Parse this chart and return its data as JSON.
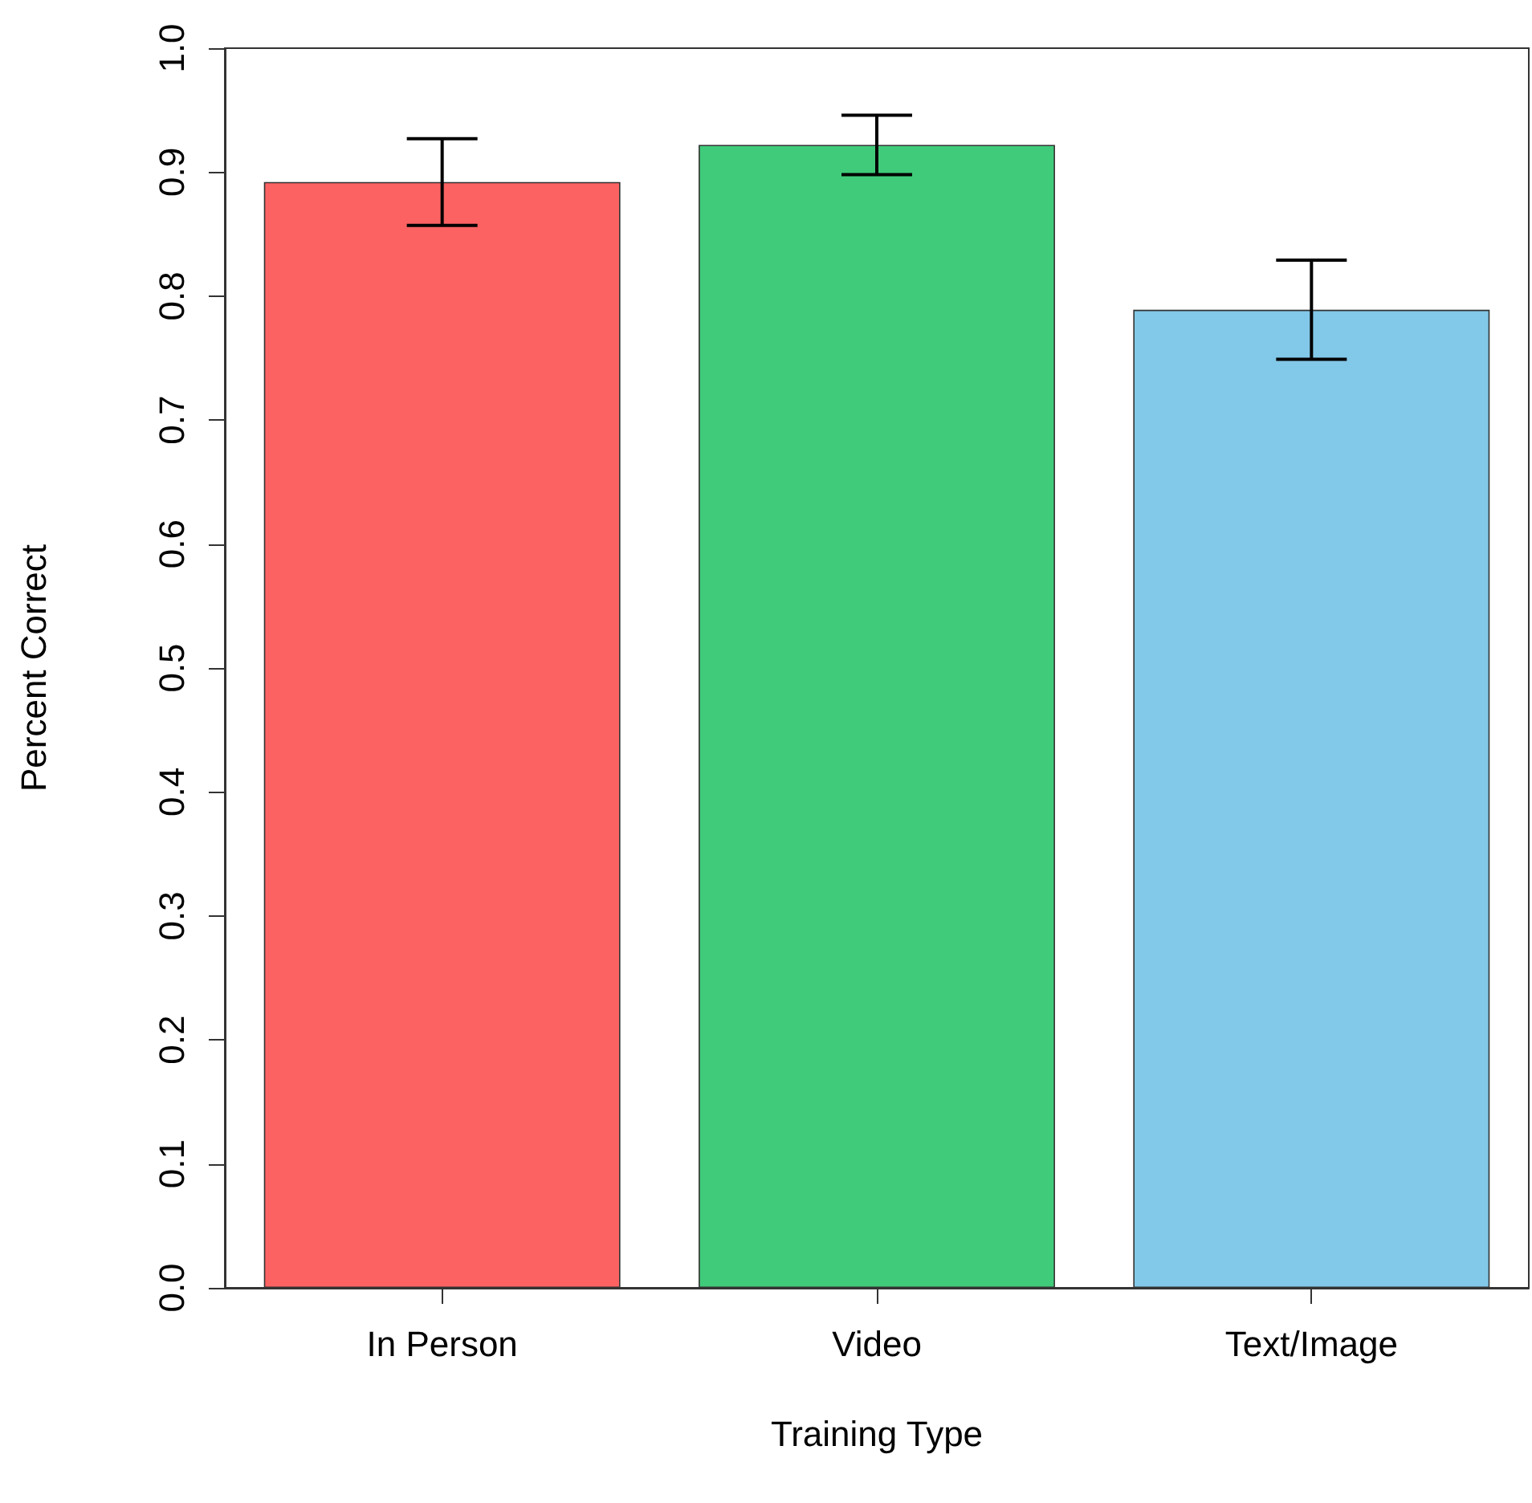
{
  "chart_data": {
    "type": "bar",
    "xlabel": "Training Type",
    "ylabel": "Percent Correct",
    "categories": [
      "In Person",
      "Video",
      "Text/Image"
    ],
    "values": [
      0.892,
      0.922,
      0.789
    ],
    "colors": [
      "#fc6262",
      "#40cb7a",
      "#82c8e8"
    ],
    "errors": [
      0.035,
      0.024,
      0.04
    ],
    "ylim": [
      0,
      1
    ],
    "yticks": [
      {
        "value": 0,
        "label": "0.0"
      },
      0.1,
      0.2,
      0.3,
      0.4,
      0.5,
      0.6,
      0.7,
      0.8,
      0.9,
      {
        "value": 1,
        "label": "1.0"
      }
    ],
    "grid": false
  }
}
